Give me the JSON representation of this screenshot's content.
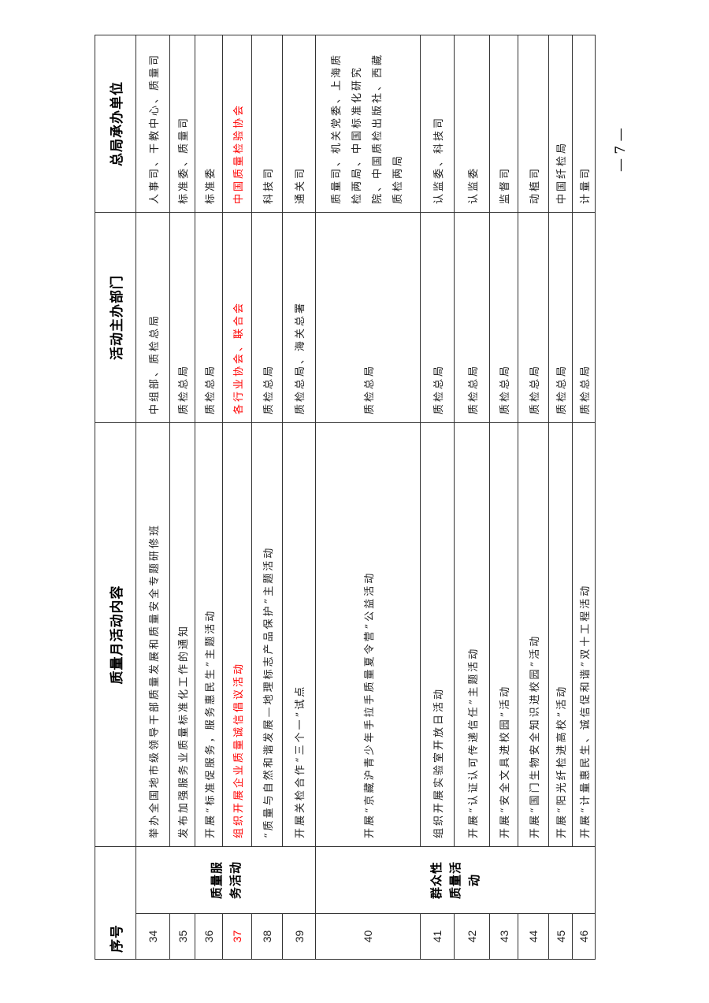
{
  "headers": {
    "seq": "序号",
    "content": "质量月活动内容",
    "organizer": "活动主办部门",
    "undertaker": "总局承办单位"
  },
  "categories": [
    "质量服务活动",
    "群众性质量活动"
  ],
  "rows": [
    {
      "no": "34",
      "content": "举办全国地市级领导干部质量发展和质量安全专题研修班",
      "organizer": "中组部、质检总局",
      "undertaker": "人事司、干教中心、质量司",
      "highlight": false
    },
    {
      "no": "35",
      "content": "发布加强服务业质量标准化工作的通知",
      "organizer": "质检总局",
      "undertaker": "标准委、质量司",
      "highlight": false
    },
    {
      "no": "36",
      "content": "开展“标准促服务，服务惠民生”主题活动",
      "organizer": "质检总局",
      "undertaker": "标准委",
      "highlight": false
    },
    {
      "no": "37",
      "content": "组织开展企业质量诚信倡议活动",
      "organizer": "各行业协会、联合会",
      "undertaker": "中国质量检验协会",
      "highlight": true
    },
    {
      "no": "38",
      "content": "“质量与自然和谐发展—地理标志产品保护”主题活动",
      "organizer": "质检总局",
      "undertaker": "科技司",
      "highlight": false
    },
    {
      "no": "39",
      "content": "开展关检合作“三个一”试点",
      "organizer": "质检总局、海关总署",
      "undertaker": "通关司",
      "highlight": false
    },
    {
      "no": "40",
      "content": "开展“京藏沪青少年手拉手质量夏令营”公益活动",
      "organizer": "质检总局",
      "undertaker": "质量司、机关党委、上海质检两局、中国标准化研究院、中国质检出版社、西藏质检两局",
      "highlight": false
    },
    {
      "no": "41",
      "content": "组织开展实验室开放日活动",
      "organizer": "质检总局",
      "undertaker": "认监委、科技司",
      "highlight": false
    },
    {
      "no": "42",
      "content": "开展“认证认可传递信任”主题活动",
      "organizer": "质检总局",
      "undertaker": "认监委",
      "highlight": false
    },
    {
      "no": "43",
      "content": "开展“安全文具进校园”活动",
      "organizer": "质检总局",
      "undertaker": "监督司",
      "highlight": false
    },
    {
      "no": "44",
      "content": "开展“国门生物安全知识进校园”活动",
      "organizer": "质检总局",
      "undertaker": "动植司",
      "highlight": false
    },
    {
      "no": "45",
      "content": "开展“阳光纤检进高校”活动",
      "organizer": "质检总局",
      "undertaker": "中国纤检局",
      "highlight": false
    },
    {
      "no": "46",
      "content": "开展“计量惠民生、诚信促和谐”双十工程活动",
      "organizer": "质检总局",
      "undertaker": "计量司",
      "highlight": false
    }
  ],
  "page_number": "— 7 —",
  "colors": {
    "highlight": "#ff0000",
    "border": "#333333"
  }
}
